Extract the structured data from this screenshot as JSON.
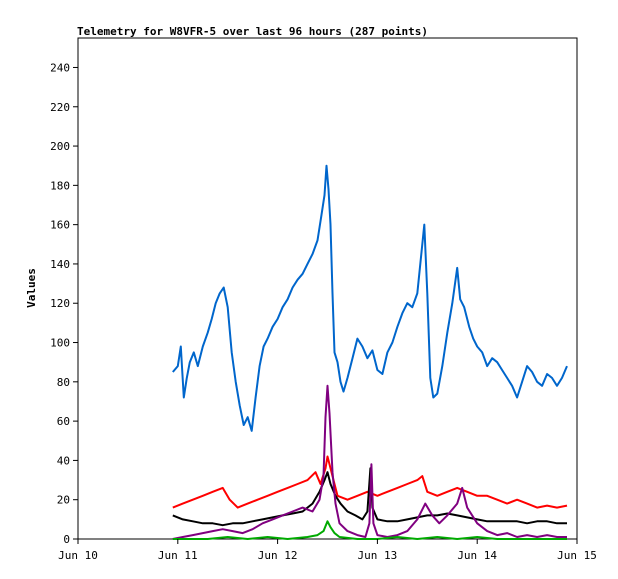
{
  "chart_data": {
    "type": "line",
    "title": "Telemetry for W8VFR-5 over last 96 hours (287 points)",
    "xlabel": "",
    "ylabel": "Values",
    "x_ticks": [
      "Jun 10",
      "Jun 11",
      "Jun 12",
      "Jun 13",
      "Jun 14",
      "Jun 15"
    ],
    "xlim_days": [
      10,
      15
    ],
    "ylim": [
      0,
      255
    ],
    "y_ticks": [
      0,
      20,
      40,
      60,
      80,
      100,
      120,
      140,
      160,
      180,
      200,
      220,
      240
    ],
    "grid": false,
    "legend": "none",
    "x_unit": "day of June",
    "series": [
      {
        "color": "#0066cc",
        "points": [
          [
            10.95,
            85
          ],
          [
            11.0,
            88
          ],
          [
            11.03,
            98
          ],
          [
            11.06,
            72
          ],
          [
            11.09,
            82
          ],
          [
            11.12,
            90
          ],
          [
            11.16,
            95
          ],
          [
            11.2,
            88
          ],
          [
            11.25,
            98
          ],
          [
            11.3,
            105
          ],
          [
            11.34,
            112
          ],
          [
            11.38,
            120
          ],
          [
            11.42,
            125
          ],
          [
            11.46,
            128
          ],
          [
            11.5,
            118
          ],
          [
            11.54,
            95
          ],
          [
            11.58,
            80
          ],
          [
            11.62,
            68
          ],
          [
            11.66,
            58
          ],
          [
            11.7,
            62
          ],
          [
            11.74,
            55
          ],
          [
            11.78,
            72
          ],
          [
            11.82,
            88
          ],
          [
            11.86,
            98
          ],
          [
            11.9,
            102
          ],
          [
            11.95,
            108
          ],
          [
            12.0,
            112
          ],
          [
            12.05,
            118
          ],
          [
            12.1,
            122
          ],
          [
            12.15,
            128
          ],
          [
            12.2,
            132
          ],
          [
            12.25,
            135
          ],
          [
            12.3,
            140
          ],
          [
            12.35,
            145
          ],
          [
            12.4,
            152
          ],
          [
            12.44,
            165
          ],
          [
            12.47,
            175
          ],
          [
            12.49,
            190
          ],
          [
            12.51,
            178
          ],
          [
            12.53,
            160
          ],
          [
            12.55,
            125
          ],
          [
            12.57,
            95
          ],
          [
            12.6,
            90
          ],
          [
            12.63,
            80
          ],
          [
            12.66,
            75
          ],
          [
            12.7,
            82
          ],
          [
            12.75,
            92
          ],
          [
            12.8,
            102
          ],
          [
            12.85,
            98
          ],
          [
            12.9,
            92
          ],
          [
            12.95,
            96
          ],
          [
            13.0,
            86
          ],
          [
            13.05,
            84
          ],
          [
            13.1,
            95
          ],
          [
            13.15,
            100
          ],
          [
            13.2,
            108
          ],
          [
            13.25,
            115
          ],
          [
            13.3,
            120
          ],
          [
            13.35,
            118
          ],
          [
            13.4,
            125
          ],
          [
            13.44,
            145
          ],
          [
            13.47,
            160
          ],
          [
            13.5,
            125
          ],
          [
            13.53,
            82
          ],
          [
            13.56,
            72
          ],
          [
            13.6,
            74
          ],
          [
            13.65,
            88
          ],
          [
            13.7,
            105
          ],
          [
            13.75,
            120
          ],
          [
            13.8,
            138
          ],
          [
            13.83,
            122
          ],
          [
            13.87,
            118
          ],
          [
            13.92,
            108
          ],
          [
            13.96,
            102
          ],
          [
            14.0,
            98
          ],
          [
            14.05,
            95
          ],
          [
            14.1,
            88
          ],
          [
            14.15,
            92
          ],
          [
            14.2,
            90
          ],
          [
            14.25,
            86
          ],
          [
            14.3,
            82
          ],
          [
            14.35,
            78
          ],
          [
            14.4,
            72
          ],
          [
            14.45,
            80
          ],
          [
            14.5,
            88
          ],
          [
            14.55,
            85
          ],
          [
            14.6,
            80
          ],
          [
            14.65,
            78
          ],
          [
            14.7,
            84
          ],
          [
            14.75,
            82
          ],
          [
            14.8,
            78
          ],
          [
            14.85,
            82
          ],
          [
            14.9,
            88
          ]
        ]
      },
      {
        "color": "#ff0000",
        "points": [
          [
            10.95,
            16
          ],
          [
            11.05,
            18
          ],
          [
            11.15,
            20
          ],
          [
            11.25,
            22
          ],
          [
            11.35,
            24
          ],
          [
            11.45,
            26
          ],
          [
            11.52,
            20
          ],
          [
            11.6,
            16
          ],
          [
            11.7,
            18
          ],
          [
            11.8,
            20
          ],
          [
            11.9,
            22
          ],
          [
            12.0,
            24
          ],
          [
            12.1,
            26
          ],
          [
            12.2,
            28
          ],
          [
            12.3,
            30
          ],
          [
            12.38,
            34
          ],
          [
            12.43,
            28
          ],
          [
            12.48,
            36
          ],
          [
            12.5,
            42
          ],
          [
            12.52,
            38
          ],
          [
            12.56,
            30
          ],
          [
            12.6,
            22
          ],
          [
            12.7,
            20
          ],
          [
            12.8,
            22
          ],
          [
            12.9,
            24
          ],
          [
            13.0,
            22
          ],
          [
            13.1,
            24
          ],
          [
            13.2,
            26
          ],
          [
            13.3,
            28
          ],
          [
            13.4,
            30
          ],
          [
            13.45,
            32
          ],
          [
            13.5,
            24
          ],
          [
            13.6,
            22
          ],
          [
            13.7,
            24
          ],
          [
            13.8,
            26
          ],
          [
            13.9,
            24
          ],
          [
            14.0,
            22
          ],
          [
            14.1,
            22
          ],
          [
            14.2,
            20
          ],
          [
            14.3,
            18
          ],
          [
            14.4,
            20
          ],
          [
            14.5,
            18
          ],
          [
            14.6,
            16
          ],
          [
            14.7,
            17
          ],
          [
            14.8,
            16
          ],
          [
            14.9,
            17
          ]
        ]
      },
      {
        "color": "#000000",
        "points": [
          [
            10.95,
            12
          ],
          [
            11.05,
            10
          ],
          [
            11.15,
            9
          ],
          [
            11.25,
            8
          ],
          [
            11.35,
            8
          ],
          [
            11.45,
            7
          ],
          [
            11.55,
            8
          ],
          [
            11.65,
            8
          ],
          [
            11.75,
            9
          ],
          [
            11.85,
            10
          ],
          [
            11.95,
            11
          ],
          [
            12.05,
            12
          ],
          [
            12.15,
            13
          ],
          [
            12.25,
            14
          ],
          [
            12.35,
            18
          ],
          [
            12.42,
            24
          ],
          [
            12.47,
            30
          ],
          [
            12.5,
            34
          ],
          [
            12.53,
            28
          ],
          [
            12.58,
            22
          ],
          [
            12.63,
            18
          ],
          [
            12.7,
            14
          ],
          [
            12.78,
            12
          ],
          [
            12.85,
            10
          ],
          [
            12.9,
            14
          ],
          [
            12.93,
            36
          ],
          [
            12.95,
            16
          ],
          [
            13.0,
            10
          ],
          [
            13.1,
            9
          ],
          [
            13.2,
            9
          ],
          [
            13.3,
            10
          ],
          [
            13.4,
            11
          ],
          [
            13.5,
            12
          ],
          [
            13.6,
            12
          ],
          [
            13.7,
            13
          ],
          [
            13.8,
            12
          ],
          [
            13.9,
            11
          ],
          [
            14.0,
            10
          ],
          [
            14.1,
            9
          ],
          [
            14.2,
            9
          ],
          [
            14.3,
            9
          ],
          [
            14.4,
            9
          ],
          [
            14.5,
            8
          ],
          [
            14.6,
            9
          ],
          [
            14.7,
            9
          ],
          [
            14.8,
            8
          ],
          [
            14.9,
            8
          ]
        ]
      },
      {
        "color": "#800080",
        "points": [
          [
            10.95,
            0
          ],
          [
            11.05,
            1
          ],
          [
            11.15,
            2
          ],
          [
            11.25,
            3
          ],
          [
            11.35,
            4
          ],
          [
            11.45,
            5
          ],
          [
            11.55,
            4
          ],
          [
            11.65,
            3
          ],
          [
            11.75,
            5
          ],
          [
            11.85,
            8
          ],
          [
            11.95,
            10
          ],
          [
            12.05,
            12
          ],
          [
            12.15,
            14
          ],
          [
            12.25,
            16
          ],
          [
            12.35,
            14
          ],
          [
            12.42,
            20
          ],
          [
            12.46,
            32
          ],
          [
            12.48,
            62
          ],
          [
            12.5,
            78
          ],
          [
            12.52,
            64
          ],
          [
            12.55,
            34
          ],
          [
            12.58,
            18
          ],
          [
            12.62,
            8
          ],
          [
            12.7,
            4
          ],
          [
            12.8,
            2
          ],
          [
            12.88,
            1
          ],
          [
            12.92,
            8
          ],
          [
            12.94,
            38
          ],
          [
            12.96,
            8
          ],
          [
            13.0,
            2
          ],
          [
            13.1,
            1
          ],
          [
            13.2,
            2
          ],
          [
            13.3,
            4
          ],
          [
            13.4,
            10
          ],
          [
            13.48,
            18
          ],
          [
            13.55,
            12
          ],
          [
            13.62,
            8
          ],
          [
            13.7,
            12
          ],
          [
            13.8,
            18
          ],
          [
            13.85,
            26
          ],
          [
            13.9,
            16
          ],
          [
            14.0,
            8
          ],
          [
            14.1,
            4
          ],
          [
            14.2,
            2
          ],
          [
            14.3,
            3
          ],
          [
            14.4,
            1
          ],
          [
            14.5,
            2
          ],
          [
            14.6,
            1
          ],
          [
            14.7,
            2
          ],
          [
            14.8,
            1
          ],
          [
            14.9,
            1
          ]
        ]
      },
      {
        "color": "#00aa00",
        "points": [
          [
            10.95,
            0
          ],
          [
            11.1,
            0
          ],
          [
            11.3,
            0
          ],
          [
            11.5,
            1
          ],
          [
            11.7,
            0
          ],
          [
            11.9,
            1
          ],
          [
            12.1,
            0
          ],
          [
            12.3,
            1
          ],
          [
            12.4,
            2
          ],
          [
            12.46,
            4
          ],
          [
            12.5,
            9
          ],
          [
            12.53,
            6
          ],
          [
            12.57,
            3
          ],
          [
            12.62,
            1
          ],
          [
            12.8,
            0
          ],
          [
            13.0,
            0
          ],
          [
            13.2,
            1
          ],
          [
            13.4,
            0
          ],
          [
            13.6,
            1
          ],
          [
            13.8,
            0
          ],
          [
            14.0,
            1
          ],
          [
            14.2,
            0
          ],
          [
            14.4,
            0
          ],
          [
            14.6,
            0
          ],
          [
            14.8,
            0
          ],
          [
            14.9,
            0
          ]
        ]
      }
    ]
  }
}
